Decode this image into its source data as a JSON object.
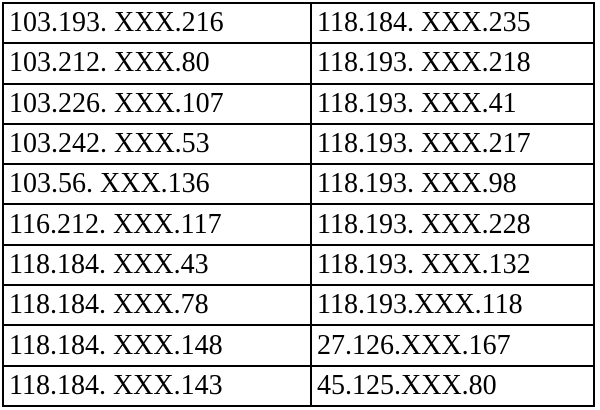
{
  "table": {
    "rows": [
      [
        "103.193. XXX.216",
        "118.184. XXX.235"
      ],
      [
        "103.212. XXX.80",
        "118.193. XXX.218"
      ],
      [
        "103.226. XXX.107",
        "118.193. XXX.41"
      ],
      [
        "103.242. XXX.53",
        "118.193. XXX.217"
      ],
      [
        "103.56. XXX.136",
        "118.193. XXX.98"
      ],
      [
        "116.212. XXX.117",
        "118.193. XXX.228"
      ],
      [
        "118.184. XXX.43",
        "118.193. XXX.132"
      ],
      [
        "118.184. XXX.78",
        "118.193.XXX.118"
      ],
      [
        "118.184. XXX.148",
        "27.126.XXX.167"
      ],
      [
        "118.184. XXX.143",
        "45.125.XXX.80"
      ]
    ]
  }
}
